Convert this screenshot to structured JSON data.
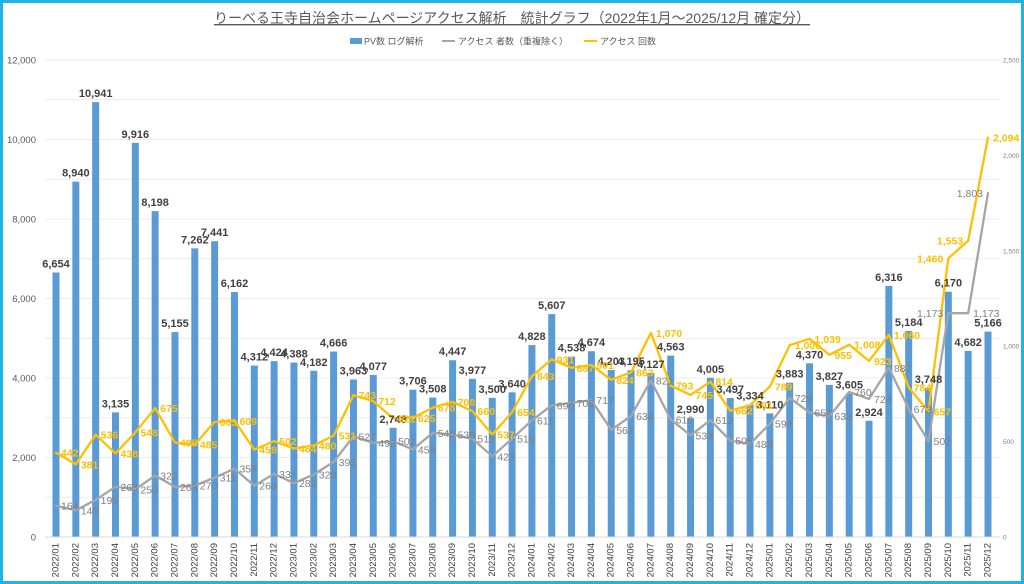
{
  "window": {
    "frame_color": "#1EB4E6"
  },
  "chart_data": {
    "type": "bar",
    "title": "りーべる王寺自治会ホームページアクセス解析　統計グラフ（2022年1月～2025/12月 確定分）",
    "xlabel": "",
    "ylabel": "",
    "grid": true,
    "legend": {
      "position": "top"
    },
    "categories": [
      "2022/01",
      "2022/02",
      "2022/03",
      "2022/04",
      "2022/05",
      "2022/06",
      "2022/07",
      "2022/08",
      "2022/09",
      "2022/10",
      "2022/11",
      "2022/12",
      "2023/01",
      "2023/02",
      "2023/03",
      "2023/04",
      "2023/05",
      "2023/06",
      "2023/07",
      "2023/08",
      "2023/09",
      "2023/10",
      "2023/11",
      "2023/12",
      "2024/01",
      "2024/02",
      "2024/03",
      "2024/04",
      "2024/05",
      "2024/06",
      "2024/07",
      "2024/08",
      "2024/09",
      "2024/10",
      "2024/11",
      "2024/12",
      "2025/01",
      "2025/02",
      "2025/03",
      "2025/04",
      "2025/05",
      "2025/06",
      "2025/07",
      "2025/08",
      "2025/09",
      "2025/10",
      "2025/11",
      "2025/12"
    ],
    "series": [
      {
        "name": "PV数 ログ解析",
        "type": "bar",
        "axis": "left",
        "color": "#5B9BD5",
        "values": [
          6654,
          8940,
          10941,
          3135,
          9916,
          8198,
          5155,
          7262,
          7441,
          6162,
          4312,
          4424,
          4388,
          4182,
          4666,
          3963,
          4077,
          2748,
          3706,
          3508,
          4447,
          3977,
          3500,
          3640,
          4828,
          5607,
          4538,
          4674,
          4203,
          4195,
          4127,
          4563,
          2990,
          4005,
          3497,
          3334,
          3110,
          3883,
          4370,
          3827,
          3605,
          2924,
          6316,
          5184,
          3748,
          6170,
          4682,
          5166
        ],
        "data_labels": [
          "6,654",
          "8,940",
          "10,941",
          "3,135",
          "9,916",
          "8,198",
          "5,155",
          "7,262",
          "7,441",
          "6,162",
          "4,312",
          "4,424",
          "4,388",
          "4,182",
          "4,666",
          "3,963",
          "4,077",
          "2,748",
          "3,706",
          "3,508",
          "4,447",
          "3,977",
          "3,500",
          "3,640",
          "4,828",
          "5,607",
          "4,538",
          "4,674",
          "4,203",
          "4,195",
          "4,127",
          "4,563",
          "2,990",
          "4,005",
          "3,497",
          "3,334",
          "3,110",
          "3,883",
          "4,370",
          "3,827",
          "3,605",
          "2,924",
          "6,316",
          "5,184",
          "3,748",
          "6,170",
          "4,682",
          "5,166"
        ]
      },
      {
        "name": "アクセス 者数（重複除く）",
        "type": "line",
        "axis": "right",
        "color": "#A5A5A5",
        "values": [
          164,
          140,
          195,
          263,
          250,
          322,
          263,
          270,
          311,
          358,
          269,
          331,
          282,
          328,
          393,
          527,
          493,
          502,
          459,
          546,
          536,
          515,
          423,
          515,
          611,
          690,
          703,
          717,
          562,
          634,
          821,
          616,
          533,
          612,
          505,
          488,
          594,
          729,
          652,
          633,
          760,
          724,
          887,
          672,
          502,
          1173,
          1173,
          1803
        ],
        "data_labels": [
          "164",
          "140",
          "195",
          "263",
          "250",
          "322",
          "263",
          "270",
          "311",
          "358",
          "269",
          "331",
          "282",
          "328",
          "393",
          "527",
          "493",
          "502",
          "459",
          "546",
          "536",
          "515",
          "423",
          "515",
          "611",
          "690",
          "703",
          "717",
          "562",
          "634",
          "821",
          "616",
          "533",
          "612",
          "505",
          "488",
          "594",
          "729",
          "652",
          "633",
          "760",
          "724",
          "887",
          "672",
          "502",
          "1,173",
          "1,173",
          "1,803"
        ]
      },
      {
        "name": "アクセス 回数",
        "type": "line",
        "axis": "right",
        "color": "#FFC000",
        "values": [
          442,
          381,
          536,
          438,
          548,
          675,
          495,
          485,
          603,
          609,
          458,
          502,
          464,
          480,
          531,
          743,
          712,
          622,
          625,
          678,
          708,
          660,
          537,
          654,
          843,
          931,
          887,
          901,
          824,
          863,
          1070,
          793,
          745,
          814,
          662,
          691,
          789,
          1006,
          1039,
          955,
          1008,
          923,
          1060,
          784,
          657,
          1460,
          1553,
          2094
        ],
        "data_labels": [
          "442",
          "381",
          "536",
          "438",
          "548",
          "675",
          "495",
          "485",
          "603",
          "609",
          "458",
          "502",
          "464",
          "480",
          "531",
          "743",
          "712",
          "622",
          "625",
          "678",
          "708",
          "660",
          "537",
          "654",
          "843",
          "931",
          "887",
          "901",
          "824",
          "863",
          "1,070",
          "793",
          "745",
          "814",
          "662",
          "691",
          "789",
          "1,006",
          "1,039",
          "955",
          "1,008",
          "923",
          "1,060",
          "784",
          "657",
          "1,460",
          "1,553",
          "2,094"
        ]
      }
    ],
    "y_axis": {
      "range": [
        0,
        12000
      ],
      "ticks": [
        0,
        2000,
        4000,
        6000,
        8000,
        10000,
        12000
      ],
      "tick_labels": [
        "0",
        "2,000",
        "4,000",
        "6,000",
        "8,000",
        "10,000",
        "12,000"
      ]
    },
    "y2_axis": {
      "range": [
        0,
        2500
      ],
      "ticks": [
        0,
        500,
        1000,
        1500,
        2000,
        2500
      ],
      "tick_labels": [
        "0",
        "500",
        "1,000",
        "1,500",
        "2,000",
        "2,500"
      ]
    }
  }
}
